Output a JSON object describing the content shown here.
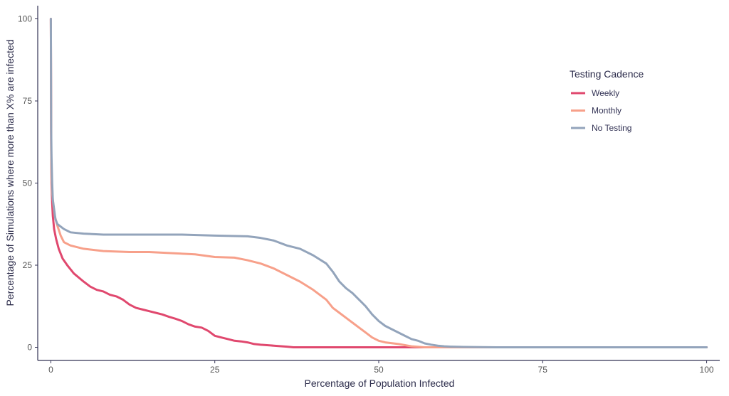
{
  "chart_data": {
    "type": "line",
    "title": "",
    "xlabel": "Percentage of Population Infected",
    "ylabel": "Percentage of Simulations where more than X% are infected",
    "xlim": [
      -2,
      102
    ],
    "ylim": [
      -4,
      104
    ],
    "x_ticks": [
      0,
      25,
      50,
      75,
      100
    ],
    "y_ticks": [
      0,
      25,
      50,
      75,
      100
    ],
    "grid": false,
    "legend": {
      "title": "Testing Cadence",
      "placement": "right"
    },
    "series": [
      {
        "name": "Weekly",
        "color": "#e0486e",
        "points": [
          [
            0,
            100
          ],
          [
            0.05,
            63
          ],
          [
            0.1,
            50
          ],
          [
            0.2,
            44
          ],
          [
            0.3,
            40
          ],
          [
            0.5,
            36
          ],
          [
            0.8,
            33
          ],
          [
            1.2,
            30
          ],
          [
            1.8,
            27
          ],
          [
            2.5,
            25
          ],
          [
            3.5,
            22.5
          ],
          [
            5,
            20
          ],
          [
            6,
            18.5
          ],
          [
            7,
            17.5
          ],
          [
            8,
            17
          ],
          [
            9,
            16
          ],
          [
            10,
            15.5
          ],
          [
            11,
            14.5
          ],
          [
            12,
            13
          ],
          [
            13,
            12
          ],
          [
            14,
            11.5
          ],
          [
            15,
            11
          ],
          [
            16,
            10.5
          ],
          [
            17,
            10
          ],
          [
            18,
            9.3
          ],
          [
            19,
            8.7
          ],
          [
            20,
            8
          ],
          [
            21,
            7
          ],
          [
            22,
            6.3
          ],
          [
            23,
            6
          ],
          [
            24,
            5
          ],
          [
            25,
            3.5
          ],
          [
            26,
            3
          ],
          [
            27,
            2.5
          ],
          [
            28,
            2
          ],
          [
            29,
            1.8
          ],
          [
            30,
            1.5
          ],
          [
            31,
            1
          ],
          [
            32,
            0.8
          ],
          [
            34,
            0.5
          ],
          [
            36,
            0.2
          ],
          [
            37,
            0
          ],
          [
            100,
            0
          ]
        ]
      },
      {
        "name": "Monthly",
        "color": "#f7a08a",
        "points": [
          [
            0,
            100
          ],
          [
            0.05,
            60
          ],
          [
            0.1,
            52
          ],
          [
            0.2,
            47
          ],
          [
            0.4,
            43
          ],
          [
            0.6,
            40
          ],
          [
            1,
            37
          ],
          [
            1.5,
            34
          ],
          [
            2,
            32
          ],
          [
            3,
            31
          ],
          [
            5,
            30
          ],
          [
            8,
            29.3
          ],
          [
            12,
            29
          ],
          [
            15,
            29
          ],
          [
            18,
            28.7
          ],
          [
            22,
            28.3
          ],
          [
            25,
            27.5
          ],
          [
            28,
            27.3
          ],
          [
            30,
            26.5
          ],
          [
            32,
            25.5
          ],
          [
            34,
            24
          ],
          [
            36,
            22
          ],
          [
            38,
            20
          ],
          [
            40,
            17.5
          ],
          [
            42,
            14.5
          ],
          [
            43,
            12
          ],
          [
            44,
            10.5
          ],
          [
            45,
            9
          ],
          [
            46,
            7.5
          ],
          [
            47,
            6
          ],
          [
            48,
            4.5
          ],
          [
            49,
            3
          ],
          [
            50,
            2
          ],
          [
            51,
            1.5
          ],
          [
            53,
            1
          ],
          [
            55,
            0.3
          ],
          [
            57,
            0
          ],
          [
            100,
            0
          ]
        ]
      },
      {
        "name": "No Testing",
        "color": "#93a4bb",
        "points": [
          [
            0,
            100
          ],
          [
            0.05,
            66
          ],
          [
            0.1,
            58
          ],
          [
            0.2,
            50
          ],
          [
            0.3,
            45
          ],
          [
            0.5,
            42
          ],
          [
            0.7,
            39
          ],
          [
            1,
            37.5
          ],
          [
            2,
            36
          ],
          [
            3,
            35
          ],
          [
            5,
            34.6
          ],
          [
            8,
            34.3
          ],
          [
            15,
            34.3
          ],
          [
            20,
            34.3
          ],
          [
            25,
            34
          ],
          [
            30,
            33.8
          ],
          [
            32,
            33.3
          ],
          [
            34,
            32.5
          ],
          [
            36,
            31
          ],
          [
            38,
            30
          ],
          [
            40,
            28
          ],
          [
            42,
            25.5
          ],
          [
            43,
            23
          ],
          [
            44,
            20
          ],
          [
            45,
            18
          ],
          [
            46,
            16.5
          ],
          [
            47,
            14.5
          ],
          [
            48,
            12.5
          ],
          [
            49,
            10
          ],
          [
            50,
            8
          ],
          [
            51,
            6.5
          ],
          [
            52,
            5.5
          ],
          [
            53,
            4.5
          ],
          [
            54,
            3.5
          ],
          [
            55,
            2.5
          ],
          [
            56,
            2
          ],
          [
            57,
            1.2
          ],
          [
            58,
            0.8
          ],
          [
            59,
            0.5
          ],
          [
            60,
            0.3
          ],
          [
            61,
            0.2
          ],
          [
            63,
            0.1
          ],
          [
            68,
            0
          ],
          [
            100,
            0
          ]
        ]
      }
    ]
  }
}
